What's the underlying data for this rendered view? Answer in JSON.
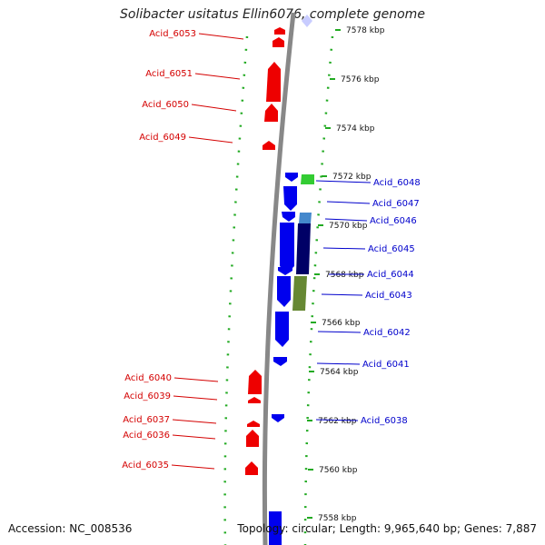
{
  "title": "Solibacter usitatus Ellin6076, complete genome",
  "footer": {
    "accession": "Accession: NC_008536",
    "topology": "Topology: circular; Length: 9,965,640 bp; Genes: 7,887"
  },
  "scale_ticks": [
    {
      "label": "7578 kbp",
      "kbp": 7578
    },
    {
      "label": "7576 kbp",
      "kbp": 7576
    },
    {
      "label": "7574 kbp",
      "kbp": 7574
    },
    {
      "label": "7572 kbp",
      "kbp": 7572
    },
    {
      "label": "7570 kbp",
      "kbp": 7570
    },
    {
      "label": "7568 kbp",
      "kbp": 7568
    },
    {
      "label": "7566 kbp",
      "kbp": 7566
    },
    {
      "label": "7564 kbp",
      "kbp": 7564
    },
    {
      "label": "7562 kbp",
      "kbp": 7562
    },
    {
      "label": "7560 kbp",
      "kbp": 7560
    },
    {
      "label": "7558 kbp",
      "kbp": 7558
    }
  ],
  "genes_reverse": [
    {
      "label": "Acid_6053"
    },
    {
      "label": "Acid_6051"
    },
    {
      "label": "Acid_6050"
    },
    {
      "label": "Acid_6049"
    },
    {
      "label": "Acid_6040"
    },
    {
      "label": "Acid_6039"
    },
    {
      "label": "Acid_6037"
    },
    {
      "label": "Acid_6036"
    },
    {
      "label": "Acid_6035"
    }
  ],
  "genes_forward": [
    {
      "label": "Acid_6048"
    },
    {
      "label": "Acid_6047"
    },
    {
      "label": "Acid_6046"
    },
    {
      "label": "Acid_6045"
    },
    {
      "label": "Acid_6044"
    },
    {
      "label": "Acid_6043"
    },
    {
      "label": "Acid_6042"
    },
    {
      "label": "Acid_6041"
    },
    {
      "label": "Acid_6038"
    }
  ],
  "colors": {
    "reverse_strand": "#ee0000",
    "forward_strand": "#0000ee",
    "backbone": "#888888",
    "ruler": "#22aa22",
    "cog_green": "#33cc33",
    "cog_lightblue": "#4488cc",
    "cog_navy": "#000066",
    "cog_olive": "#668833"
  }
}
